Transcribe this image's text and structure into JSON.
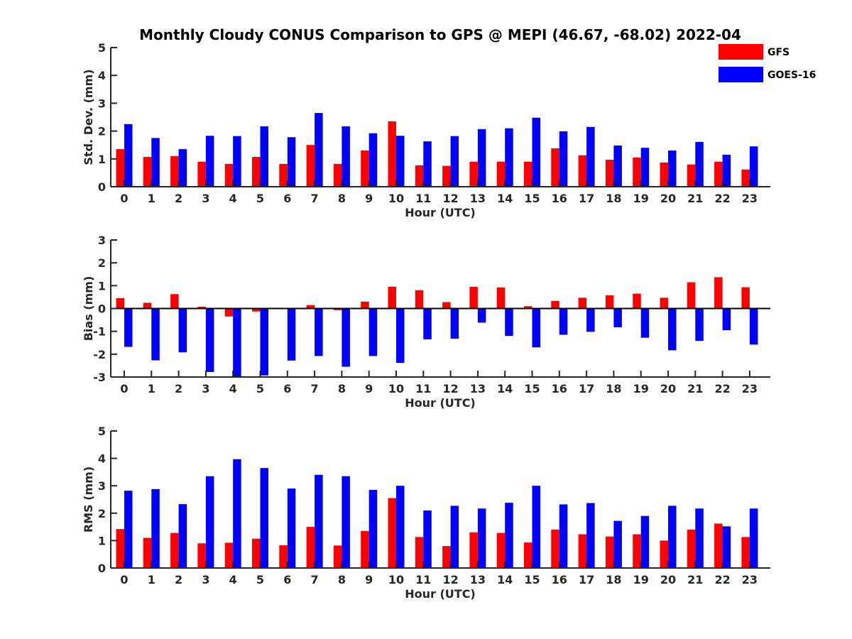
{
  "chart_data": {
    "title": "Monthly Cloudy CONUS Comparison to GPS @ MEPI (46.67, -68.02) 2022-04",
    "type": "bar",
    "legend": {
      "placement": "top-right",
      "entries": [
        {
          "name": "GFS",
          "color": "#ff0000"
        },
        {
          "name": "GOES-16",
          "color": "#0000ff"
        }
      ]
    },
    "categories": [
      "0",
      "1",
      "2",
      "3",
      "4",
      "5",
      "6",
      "7",
      "8",
      "9",
      "10",
      "11",
      "12",
      "13",
      "14",
      "15",
      "16",
      "17",
      "18",
      "19",
      "20",
      "21",
      "22",
      "23"
    ],
    "panels": [
      {
        "ylabel": "Std. Dev. (mm)",
        "xlabel": "Hour (UTC)",
        "ylim": [
          0,
          5
        ],
        "yticks": [
          "0",
          "1",
          "2",
          "3",
          "4",
          "5"
        ],
        "series": [
          {
            "name": "GFS",
            "color": "#ff0000",
            "values": [
              1.35,
              1.07,
              1.1,
              0.9,
              0.82,
              1.07,
              0.82,
              1.5,
              0.82,
              1.3,
              2.35,
              0.77,
              0.75,
              0.9,
              0.9,
              0.9,
              1.38,
              1.13,
              0.97,
              1.05,
              0.87,
              0.8,
              0.9,
              0.62
            ]
          },
          {
            "name": "GOES-16",
            "color": "#0000ff",
            "values": [
              2.25,
              1.75,
              1.35,
              1.83,
              1.82,
              2.17,
              1.78,
              2.65,
              2.17,
              1.92,
              1.83,
              1.63,
              1.82,
              2.07,
              2.1,
              2.48,
              1.99,
              2.15,
              1.48,
              1.4,
              1.3,
              1.61,
              1.15,
              1.45
            ]
          }
        ]
      },
      {
        "ylabel": "Bias (mm)",
        "xlabel": "Hour (UTC)",
        "ylim": [
          -3,
          3
        ],
        "yticks": [
          "-3",
          "-2",
          "-1",
          "0",
          "1",
          "2",
          "3"
        ],
        "series": [
          {
            "name": "GFS",
            "color": "#ff0000",
            "values": [
              0.45,
              0.25,
              0.63,
              0.08,
              -0.35,
              -0.13,
              0.03,
              0.15,
              -0.07,
              0.3,
              0.95,
              0.8,
              0.28,
              0.95,
              0.92,
              0.1,
              0.33,
              0.47,
              0.58,
              0.65,
              0.47,
              1.15,
              1.37,
              0.93
            ]
          },
          {
            "name": "GOES-16",
            "color": "#0000ff",
            "values": [
              -1.68,
              -2.27,
              -1.92,
              -2.78,
              -3.0,
              -2.93,
              -2.28,
              -2.08,
              -2.55,
              -2.08,
              -2.38,
              -1.35,
              -1.32,
              -0.62,
              -1.2,
              -1.7,
              -1.15,
              -1.02,
              -0.82,
              -1.28,
              -1.83,
              -1.42,
              -0.95,
              -1.58
            ]
          }
        ]
      },
      {
        "ylabel": "RMS (mm)",
        "xlabel": "Hour (UTC)",
        "ylim": [
          0,
          5
        ],
        "yticks": [
          "0",
          "1",
          "2",
          "3",
          "4",
          "5"
        ],
        "series": [
          {
            "name": "GFS",
            "color": "#ff0000",
            "values": [
              1.42,
              1.1,
              1.28,
              0.9,
              0.92,
              1.07,
              0.83,
              1.5,
              0.82,
              1.35,
              2.55,
              1.13,
              0.8,
              1.3,
              1.28,
              0.93,
              1.4,
              1.23,
              1.15,
              1.23,
              1.0,
              1.4,
              1.62,
              1.13
            ]
          },
          {
            "name": "GOES-16",
            "color": "#0000ff",
            "values": [
              2.82,
              2.88,
              2.33,
              3.35,
              3.97,
              3.65,
              2.9,
              3.4,
              3.35,
              2.85,
              3.0,
              2.1,
              2.27,
              2.17,
              2.38,
              3.0,
              2.32,
              2.37,
              1.72,
              1.9,
              2.27,
              2.17,
              1.52,
              2.17
            ]
          }
        ]
      }
    ]
  }
}
